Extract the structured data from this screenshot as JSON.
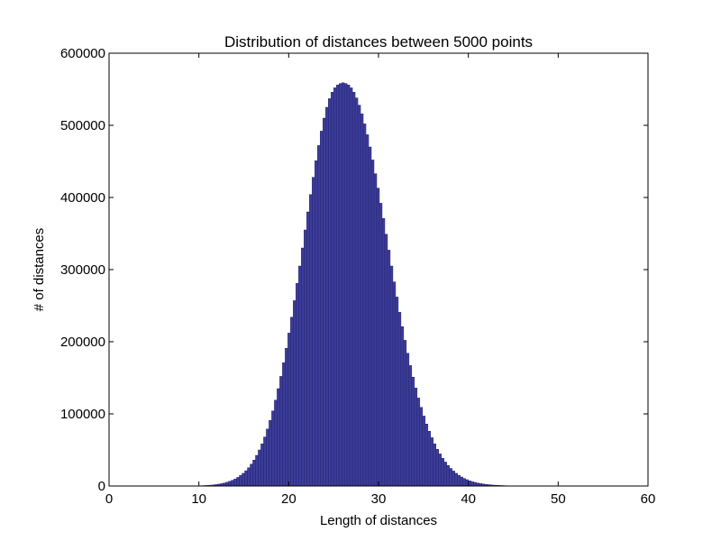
{
  "chart_data": {
    "type": "bar",
    "title": "Distribution of distances between 5000 points",
    "xlabel": "Length of distances",
    "ylabel": "# of distances",
    "xlim": [
      0,
      60
    ],
    "ylim": [
      0,
      600000
    ],
    "xticks": [
      0,
      10,
      20,
      30,
      40,
      50,
      60
    ],
    "yticks": [
      0,
      100000,
      200000,
      300000,
      400000,
      500000,
      600000
    ],
    "grid": false,
    "bar_color": "#3c3c9a",
    "bar_edge_color": "#1a1a5e",
    "bin_width": 0.3,
    "bins": {
      "x": [
        10.0,
        10.3,
        10.6,
        10.9,
        11.2,
        11.5,
        11.8,
        12.1,
        12.4,
        12.7,
        13.0,
        13.3,
        13.6,
        13.9,
        14.2,
        14.5,
        14.8,
        15.1,
        15.4,
        15.7,
        16.0,
        16.3,
        16.6,
        16.9,
        17.2,
        17.5,
        17.8,
        18.1,
        18.4,
        18.7,
        19.0,
        19.3,
        19.6,
        19.9,
        20.2,
        20.5,
        20.8,
        21.1,
        21.4,
        21.7,
        22.0,
        22.3,
        22.6,
        22.9,
        23.2,
        23.5,
        23.8,
        24.1,
        24.4,
        24.7,
        25.0,
        25.3,
        25.6,
        25.9,
        26.2,
        26.5,
        26.8,
        27.1,
        27.4,
        27.7,
        28.0,
        28.3,
        28.6,
        28.9,
        29.2,
        29.5,
        29.8,
        30.1,
        30.4,
        30.7,
        31.0,
        31.3,
        31.6,
        31.9,
        32.2,
        32.5,
        32.8,
        33.1,
        33.4,
        33.7,
        34.0,
        34.3,
        34.6,
        34.9,
        35.2,
        35.5,
        35.8,
        36.1,
        36.4,
        36.7,
        37.0,
        37.3,
        37.6,
        37.9,
        38.2,
        38.5,
        38.8,
        39.1,
        39.4,
        39.7,
        40.0,
        40.3,
        40.6,
        40.9,
        41.2,
        41.5,
        41.8,
        42.1,
        42.4,
        42.7,
        43.0,
        43.3,
        43.6,
        43.9,
        44.2,
        44.5,
        44.8,
        45.1,
        45.4,
        45.7,
        46.0,
        46.3,
        46.6,
        46.9,
        47.2,
        47.5,
        47.8,
        48.1,
        48.4,
        48.7,
        49.0,
        49.3,
        49.6,
        49.9
      ],
      "counts": [
        400,
        500,
        700,
        900,
        1200,
        1600,
        2000,
        2600,
        3300,
        4200,
        5200,
        6500,
        8000,
        9800,
        12000,
        14600,
        17600,
        21200,
        25400,
        30300,
        36000,
        42500,
        50000,
        58500,
        68000,
        79000,
        91000,
        104000,
        119000,
        135000,
        152000,
        171000,
        191000,
        212000,
        234000,
        257000,
        281000,
        305000,
        330000,
        355000,
        380000,
        404000,
        428000,
        451000,
        472000,
        492000,
        510000,
        525000,
        537000,
        546000,
        552000,
        556000,
        558000,
        559000,
        558000,
        556000,
        552000,
        546000,
        538000,
        528000,
        516000,
        502000,
        487000,
        470000,
        452000,
        433000,
        413000,
        392000,
        371000,
        349000,
        327000,
        305000,
        283000,
        262000,
        241000,
        221000,
        202000,
        184000,
        167000,
        151000,
        136000,
        122000,
        109000,
        97000,
        86000,
        76000,
        67000,
        58500,
        51000,
        44500,
        38500,
        33200,
        28500,
        24400,
        20800,
        17600,
        14900,
        12500,
        10500,
        8800,
        7300,
        6000,
        5000,
        4100,
        3400,
        2800,
        2300,
        1900,
        1500,
        1200,
        1000,
        800,
        650,
        500,
        400,
        320,
        260,
        200,
        160,
        120,
        95,
        75,
        60,
        45,
        35,
        28,
        22,
        17,
        13,
        10,
        8,
        6,
        5,
        4
      ]
    }
  }
}
